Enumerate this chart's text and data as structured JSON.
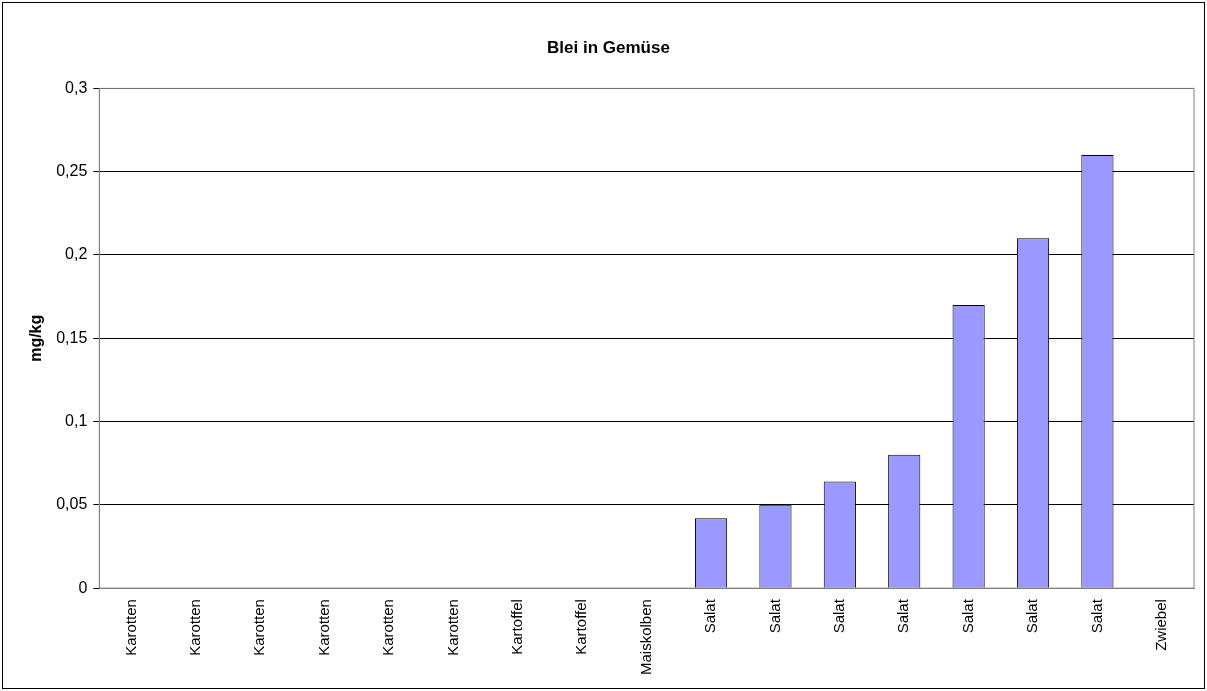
{
  "chart_data": {
    "type": "bar",
    "title": "Blei in Gemüse",
    "ylabel": "mg/kg",
    "categories": [
      "Karotten",
      "Karotten",
      "Karotten",
      "Karotten",
      "Karotten",
      "Karotten",
      "Kartoffel",
      "Kartoffel",
      "Maiskolben",
      "Salat",
      "Salat",
      "Salat",
      "Salat",
      "Salat",
      "Salat",
      "Salat",
      "Zwiebel"
    ],
    "values": [
      0,
      0,
      0,
      0,
      0,
      0,
      0,
      0,
      0,
      0.042,
      0.05,
      0.064,
      0.08,
      0.17,
      0.21,
      0.26,
      0
    ],
    "color": "#9999ff",
    "ylim": [
      0,
      0.3
    ],
    "yticks": [
      0,
      {
        "value": 0.05,
        "label": "0,05"
      },
      {
        "value": 0.1,
        "label": "0,1"
      },
      {
        "value": 0.15,
        "label": "0,15"
      },
      {
        "value": 0.2,
        "label": "0,2"
      },
      {
        "value": 0.25,
        "label": "0,25"
      },
      {
        "value": 0.3,
        "label": "0,3"
      }
    ],
    "grid": "y",
    "legend": false
  }
}
